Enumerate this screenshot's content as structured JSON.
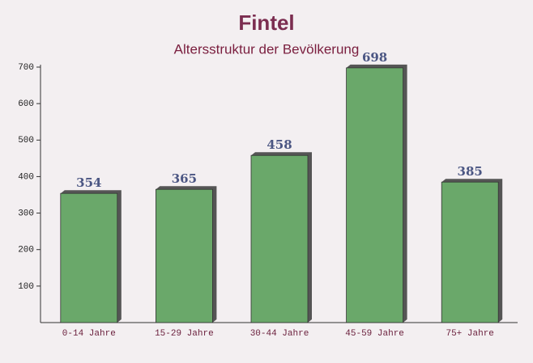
{
  "chart_data": {
    "type": "bar",
    "title": "Fintel",
    "subtitle": "Altersstruktur der Bevölkerung",
    "categories": [
      "0-14 Jahre",
      "15-29 Jahre",
      "30-44 Jahre",
      "45-59 Jahre",
      "75+ Jahre"
    ],
    "values": [
      354,
      365,
      458,
      698,
      385
    ],
    "color": "#6aa86a",
    "ylim": [
      0,
      700
    ],
    "yticks": [
      100,
      200,
      300,
      400,
      500,
      600,
      700
    ]
  }
}
